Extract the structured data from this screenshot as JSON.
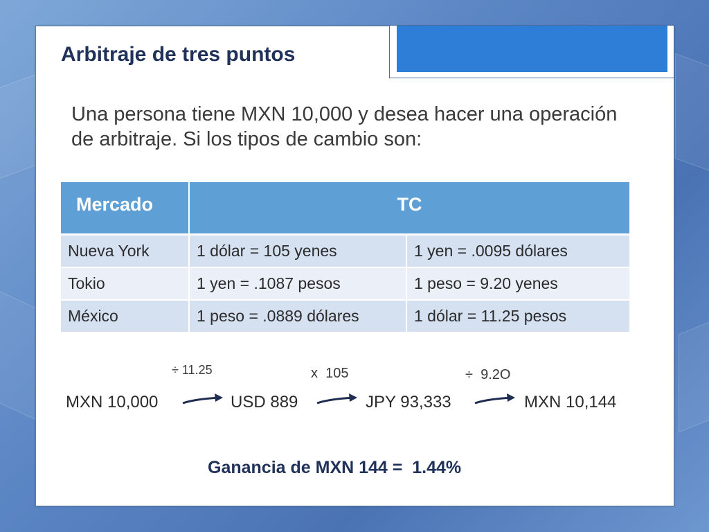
{
  "title": "Arbitraje de tres puntos",
  "intro": "Una persona tiene MXN 10,000 y desea hacer una operación de arbitraje. Si los tipos de cambio son:",
  "table": {
    "headers": [
      "Mercado",
      "TC"
    ],
    "rows": [
      [
        "Nueva York",
        "1 dólar  =  105 yenes",
        "1 yen   =   .0095 dólares"
      ],
      [
        "Tokio",
        "1 yen     = .1087 pesos",
        "1 peso =   9.20 yenes"
      ],
      [
        "México",
        "1 peso   = .0889 dólares",
        "1 dólar = 11.25 pesos"
      ]
    ]
  },
  "chain": {
    "ops": [
      "÷ 11.25",
      "x  105",
      "÷  9.2O"
    ],
    "steps": [
      "MXN 10,000",
      "USD 889",
      "JPY 93,333",
      "MXN 10,144"
    ]
  },
  "result": "Ganancia de MXN 144 =  1.44%",
  "colors": {
    "title": "#20325a",
    "header_bg": "#5e9fd6",
    "row_dark": "#d5e1f0",
    "row_light": "#ebf0f8",
    "accent_block": "#2e7dd7",
    "arrow": "#1f2d52"
  }
}
